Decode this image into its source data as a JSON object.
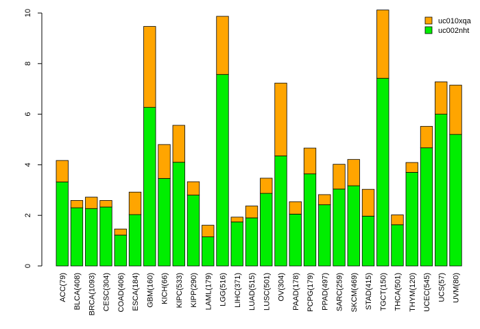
{
  "chart_data": {
    "type": "bar",
    "stacked": true,
    "title": "",
    "xlabel": "",
    "ylabel": "",
    "ylim": [
      0,
      10
    ],
    "yticks": [
      "0",
      "2",
      "4",
      "6",
      "8",
      "10"
    ],
    "grid": false,
    "legend_position": "top-right",
    "categories": [
      "ACC(79)",
      "BLCA(408)",
      "BRCA(1093)",
      "CESC(304)",
      "COAD(406)",
      "ESCA(184)",
      "GBM(160)",
      "KICH(66)",
      "KIPC(533)",
      "KIPP(290)",
      "LAML(179)",
      "LGG(516)",
      "LIHC(371)",
      "LUAD(515)",
      "LUSC(501)",
      "OV(304)",
      "PAAD(178)",
      "PCPG(179)",
      "PPAD(497)",
      "SARC(259)",
      "SKCM(469)",
      "STAD(415)",
      "TGCT(150)",
      "THCA(501)",
      "THYM(120)",
      "UCEC(545)",
      "UCS(57)",
      "UVM(80)"
    ],
    "series": [
      {
        "name": "uc002nht",
        "color": "#00ee00",
        "values": [
          3.32,
          2.3,
          2.27,
          2.33,
          1.22,
          2.03,
          6.27,
          3.46,
          4.1,
          2.8,
          1.15,
          7.57,
          1.74,
          1.9,
          2.87,
          4.35,
          2.05,
          3.64,
          2.42,
          3.04,
          3.17,
          1.97,
          7.42,
          1.63,
          3.7,
          4.67,
          6.0,
          5.2
        ]
      },
      {
        "name": "uc010xqa",
        "color": "#ffa500",
        "values": [
          0.85,
          0.29,
          0.45,
          0.26,
          0.24,
          0.89,
          3.2,
          1.34,
          1.46,
          0.53,
          0.46,
          2.3,
          0.19,
          0.47,
          0.6,
          2.88,
          0.49,
          1.02,
          0.4,
          0.98,
          1.04,
          1.06,
          2.7,
          0.39,
          0.39,
          0.85,
          1.28,
          1.95
        ]
      }
    ]
  }
}
